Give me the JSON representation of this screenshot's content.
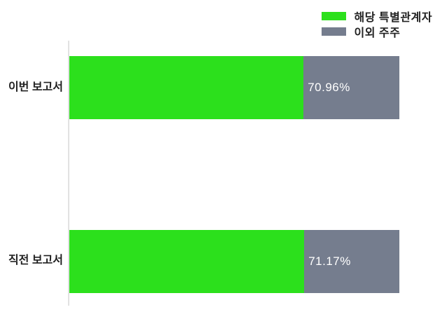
{
  "chart_data": {
    "type": "bar",
    "orientation": "horizontal",
    "stacked": true,
    "title": "",
    "xlabel": "",
    "ylabel": "",
    "xlim": [
      0,
      100
    ],
    "grid": false,
    "legend_position": "top-right",
    "categories": [
      "이번 보고서",
      "직전 보고서"
    ],
    "series": [
      {
        "name": "해당 특별관계자",
        "color": "#2ce01c",
        "values": [
          70.96,
          71.17
        ]
      },
      {
        "name": "이외 주주",
        "color": "#757d8e",
        "values": [
          29.04,
          28.83
        ]
      }
    ],
    "value_labels": [
      "70.96%",
      "71.17%"
    ],
    "axis_color": "#e2e2e2",
    "value_label_color": "#ffffff",
    "text_color": "#222222"
  }
}
